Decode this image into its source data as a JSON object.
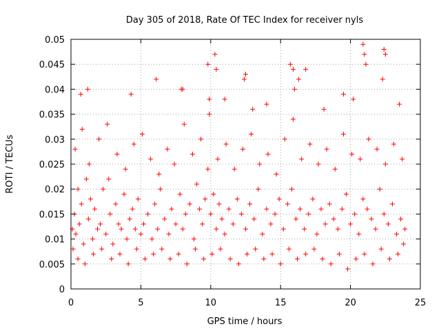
{
  "chart_data": {
    "type": "scatter",
    "title": "Day 305 of 2018, Rate Of TEC Index for receiver nyls",
    "xlabel": "GPS time / hours",
    "ylabel": "ROTI / TECUs",
    "xlim": [
      0,
      25
    ],
    "ylim": [
      0,
      0.05
    ],
    "xticks": [
      0,
      5,
      10,
      15,
      20,
      25
    ],
    "xtick_labels": [
      "0",
      "5",
      "10",
      "15",
      "20",
      "25"
    ],
    "yticks": [
      0,
      0.005,
      0.01,
      0.015,
      0.02,
      0.025,
      0.03,
      0.035,
      0.04,
      0.045,
      0.05
    ],
    "ytick_labels": [
      "0",
      "0.005",
      "0.01",
      "0.015",
      "0.02",
      "0.025",
      "0.03",
      "0.035",
      "0.04",
      "0.045",
      "0.05"
    ],
    "grid": true,
    "marker": "+",
    "color": "#ff0000",
    "series": [
      {
        "name": "ROTI",
        "x": [
          0.1,
          0.15,
          0.25,
          0.35,
          0.5,
          0.6,
          0.75,
          0.9,
          1.1,
          1.25,
          1.4,
          1.55,
          1.7,
          1.9,
          2.1,
          2.3,
          2.5,
          2.8,
          3.0,
          3.2,
          3.4,
          3.6,
          3.8,
          4.0,
          4.2,
          4.4,
          4.6,
          4.8,
          5.0,
          5.2,
          5.5,
          5.8,
          6.0,
          6.2,
          6.4,
          6.7,
          7.0,
          7.2,
          7.5,
          7.8,
          8.0,
          8.2,
          8.5,
          8.8,
          9.0,
          9.2,
          9.4,
          9.6,
          9.8,
          10.0,
          10.2,
          10.4,
          10.6,
          10.8,
          11.0,
          11.3,
          11.6,
          11.9,
          12.2,
          12.5,
          12.8,
          13.1,
          13.4,
          13.7,
          14.0,
          14.3,
          14.6,
          14.9,
          15.2,
          15.5,
          15.8,
          16.1,
          16.4,
          16.7,
          17.0,
          17.3,
          17.6,
          17.9,
          18.2,
          18.5,
          18.8,
          19.1,
          19.4,
          19.7,
          20.0,
          20.3,
          20.6,
          20.9,
          21.2,
          21.5,
          21.8,
          22.1,
          22.4,
          22.7,
          23.0,
          23.3,
          23.6,
          23.9,
          0.3,
          0.8,
          1.3,
          2.0,
          2.7,
          3.3,
          3.9,
          4.5,
          5.1,
          5.7,
          6.3,
          6.9,
          7.4,
          8.1,
          8.7,
          9.3,
          9.9,
          10.5,
          11.1,
          11.7,
          12.3,
          12.9,
          13.5,
          14.1,
          14.7,
          15.3,
          15.9,
          16.5,
          17.1,
          17.7,
          18.3,
          18.9,
          19.5,
          20.1,
          20.7,
          21.3,
          21.9,
          22.5,
          23.1,
          23.7,
          0.5,
          1.0,
          1.6,
          2.2,
          2.9,
          3.5,
          4.1,
          4.7,
          5.3,
          5.9,
          6.5,
          7.1,
          7.7,
          8.3,
          8.9,
          9.5,
          10.1,
          10.7,
          11.4,
          12.0,
          12.6,
          13.2,
          13.8,
          14.4,
          15.0,
          15.6,
          16.2,
          16.8,
          17.4,
          18.0,
          18.6,
          19.2,
          19.8,
          20.4,
          21.0,
          21.6,
          22.2,
          22.8,
          23.4,
          23.8,
          9.8,
          10.3,
          10.4,
          12.5,
          15.7,
          15.9,
          16.3,
          16.8,
          20.9,
          21.0,
          22.4,
          22.5,
          8.0,
          9.9,
          11.0,
          12.4,
          16.0,
          20.2,
          21.1,
          22.3,
          1.2,
          6.1,
          7.9,
          14.0,
          19.5,
          23.5,
          0.7,
          2.6,
          4.3,
          13.0,
          18.1
        ],
        "y": [
          0.012,
          0.008,
          0.015,
          0.011,
          0.02,
          0.013,
          0.017,
          0.009,
          0.022,
          0.014,
          0.018,
          0.01,
          0.016,
          0.012,
          0.013,
          0.02,
          0.011,
          0.015,
          0.009,
          0.017,
          0.013,
          0.012,
          0.019,
          0.01,
          0.014,
          0.016,
          0.012,
          0.018,
          0.011,
          0.013,
          0.015,
          0.01,
          0.017,
          0.012,
          0.02,
          0.014,
          0.011,
          0.016,
          0.013,
          0.019,
          0.012,
          0.015,
          0.017,
          0.01,
          0.021,
          0.016,
          0.013,
          0.018,
          0.024,
          0.015,
          0.019,
          0.012,
          0.017,
          0.014,
          0.011,
          0.016,
          0.013,
          0.018,
          0.015,
          0.012,
          0.017,
          0.014,
          0.02,
          0.011,
          0.016,
          0.013,
          0.015,
          0.018,
          0.012,
          0.017,
          0.02,
          0.014,
          0.016,
          0.012,
          0.015,
          0.018,
          0.011,
          0.016,
          0.013,
          0.017,
          0.014,
          0.012,
          0.016,
          0.019,
          0.013,
          0.015,
          0.011,
          0.018,
          0.016,
          0.014,
          0.012,
          0.02,
          0.015,
          0.013,
          0.017,
          0.011,
          0.014,
          0.012,
          0.028,
          0.032,
          0.025,
          0.03,
          0.022,
          0.027,
          0.024,
          0.029,
          0.031,
          0.026,
          0.023,
          0.028,
          0.025,
          0.033,
          0.027,
          0.03,
          0.035,
          0.026,
          0.029,
          0.024,
          0.028,
          0.031,
          0.025,
          0.027,
          0.023,
          0.03,
          0.034,
          0.026,
          0.029,
          0.025,
          0.028,
          0.024,
          0.031,
          0.027,
          0.026,
          0.03,
          0.028,
          0.025,
          0.029,
          0.026,
          0.006,
          0.005,
          0.007,
          0.008,
          0.006,
          0.007,
          0.005,
          0.008,
          0.006,
          0.007,
          0.008,
          0.006,
          0.007,
          0.005,
          0.008,
          0.006,
          0.007,
          0.008,
          0.006,
          0.005,
          0.007,
          0.008,
          0.006,
          0.007,
          0.005,
          0.008,
          0.006,
          0.007,
          0.008,
          0.006,
          0.005,
          0.007,
          0.004,
          0.006,
          0.007,
          0.005,
          0.008,
          0.006,
          0.007,
          0.009,
          0.045,
          0.047,
          0.044,
          0.043,
          0.045,
          0.044,
          0.042,
          0.044,
          0.049,
          0.047,
          0.048,
          0.047,
          0.04,
          0.038,
          0.038,
          0.042,
          0.04,
          0.038,
          0.045,
          0.042,
          0.04,
          0.042,
          0.04,
          0.037,
          0.039,
          0.037,
          0.039,
          0.033,
          0.039,
          0.036,
          0.036
        ]
      }
    ]
  }
}
